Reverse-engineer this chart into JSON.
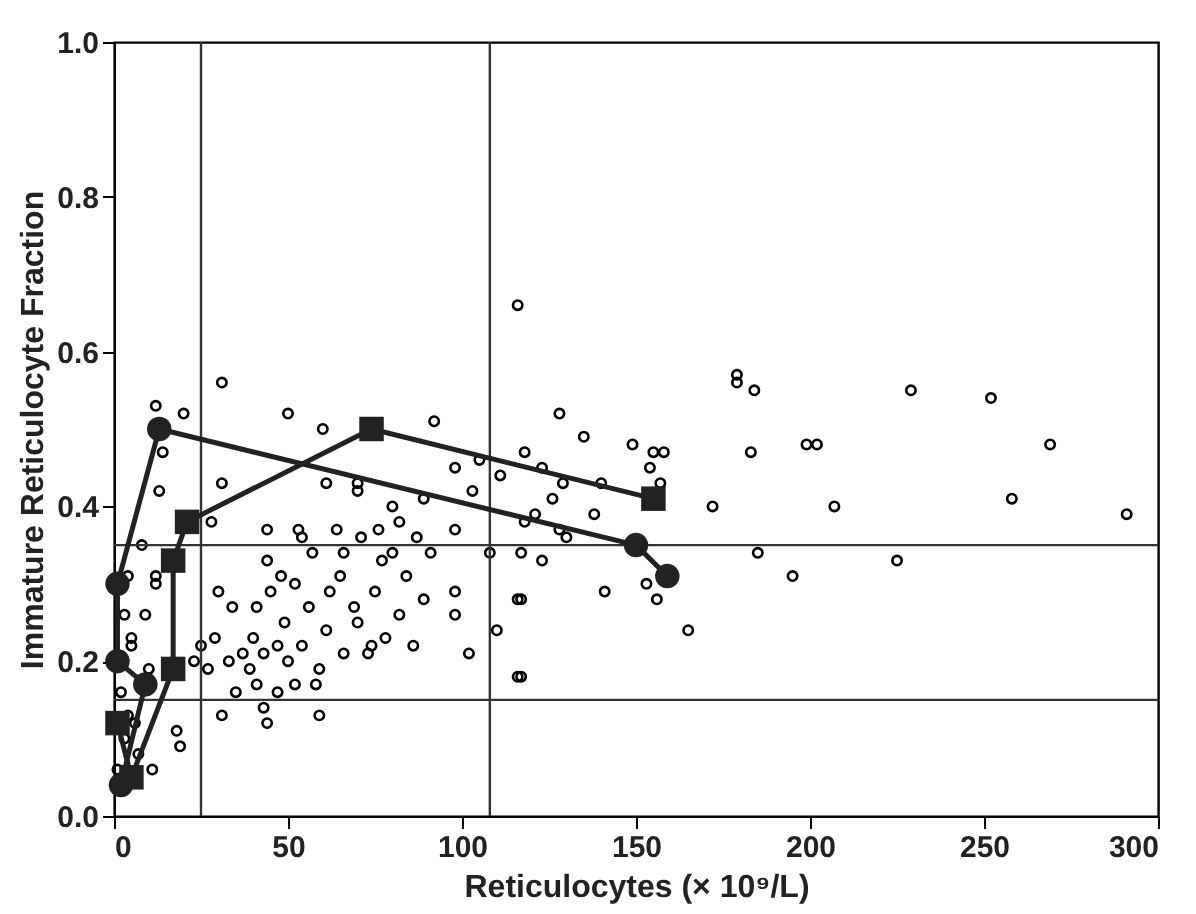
{
  "chart_data": {
    "type": "scatter",
    "xlabel": "Reticulocytes (× 10⁹/L)",
    "ylabel": "Immature Reticulocyte Fraction",
    "xlim": [
      0,
      300
    ],
    "xticks": [
      0,
      50,
      100,
      150,
      200,
      250,
      300
    ],
    "ylim": [
      0,
      1.0
    ],
    "yticks": [
      {
        "value": 0,
        "label": "0.0"
      },
      0.2,
      0.4,
      0.6,
      0.8,
      {
        "value": 1.0,
        "label": "1.0"
      }
    ],
    "grid": false,
    "legend": false,
    "ref_lines": [
      {
        "axis": "x",
        "value": 25,
        "color": "#333333"
      },
      {
        "axis": "x",
        "value": 108,
        "color": "#333333"
      },
      {
        "axis": "y",
        "value": 0.35,
        "color": "#333333"
      },
      {
        "axis": "y",
        "value": 0.15,
        "color": "#333333"
      }
    ],
    "series": [
      {
        "color": "#000000",
        "marker": "circle",
        "x": [
          179,
          179,
          184,
          229,
          252,
          128,
          135,
          149,
          118,
          155,
          158,
          154,
          183,
          199,
          202,
          269,
          123,
          140,
          129,
          126,
          157,
          258,
          172,
          207,
          291,
          121,
          138,
          118,
          128,
          130,
          117,
          123,
          185,
          195,
          225,
          141,
          153,
          156,
          117,
          165,
          117,
          31,
          12,
          20,
          50,
          60,
          92,
          14,
          13,
          31,
          61,
          70,
          70,
          89,
          80,
          98,
          105,
          111,
          103,
          28,
          8,
          12,
          4,
          44,
          53,
          98,
          108,
          98,
          98,
          102,
          110,
          116,
          116,
          59,
          44,
          31,
          18,
          19,
          11,
          10,
          5,
          9,
          3,
          5,
          2,
          4,
          6,
          3,
          7,
          1,
          12,
          27,
          30,
          34,
          33,
          37,
          40,
          41,
          45,
          44,
          48,
          49,
          50,
          54,
          56,
          57,
          59,
          61,
          62,
          65,
          66,
          69,
          70,
          71,
          73,
          75,
          77,
          78,
          82,
          84,
          86,
          87,
          89,
          91,
          82,
          41,
          39,
          35,
          47,
          43,
          52,
          58,
          23,
          25,
          29,
          54,
          64,
          76,
          80,
          66,
          52,
          74,
          47,
          43,
          116
        ],
        "values": [
          0.57,
          0.56,
          0.55,
          0.55,
          0.54,
          0.52,
          0.49,
          0.48,
          0.47,
          0.47,
          0.47,
          0.45,
          0.47,
          0.48,
          0.48,
          0.48,
          0.45,
          0.43,
          0.43,
          0.41,
          0.43,
          0.41,
          0.4,
          0.4,
          0.39,
          0.39,
          0.39,
          0.38,
          0.37,
          0.36,
          0.34,
          0.33,
          0.34,
          0.31,
          0.33,
          0.29,
          0.3,
          0.28,
          0.28,
          0.24,
          0.18,
          0.56,
          0.53,
          0.52,
          0.52,
          0.5,
          0.51,
          0.47,
          0.42,
          0.43,
          0.43,
          0.43,
          0.42,
          0.41,
          0.4,
          0.45,
          0.46,
          0.44,
          0.42,
          0.38,
          0.35,
          0.3,
          0.31,
          0.37,
          0.37,
          0.37,
          0.34,
          0.29,
          0.26,
          0.21,
          0.24,
          0.28,
          0.18,
          0.13,
          0.12,
          0.13,
          0.11,
          0.09,
          0.06,
          0.19,
          0.22,
          0.26,
          0.26,
          0.23,
          0.16,
          0.13,
          0.12,
          0.1,
          0.08,
          0.06,
          0.31,
          0.19,
          0.29,
          0.27,
          0.2,
          0.21,
          0.23,
          0.17,
          0.29,
          0.33,
          0.31,
          0.25,
          0.2,
          0.22,
          0.27,
          0.34,
          0.19,
          0.24,
          0.29,
          0.31,
          0.21,
          0.27,
          0.25,
          0.36,
          0.21,
          0.29,
          0.33,
          0.23,
          0.26,
          0.31,
          0.22,
          0.36,
          0.28,
          0.34,
          0.38,
          0.27,
          0.19,
          0.16,
          0.16,
          0.14,
          0.17,
          0.17,
          0.2,
          0.22,
          0.23,
          0.36,
          0.37,
          0.37,
          0.34,
          0.34,
          0.3,
          0.22,
          0.22,
          0.21,
          0.66
        ]
      },
      {
        "type": "line",
        "color": "#222222",
        "marker": "circle",
        "line_style": "solid",
        "x": [
          2,
          9,
          1,
          1,
          13,
          150,
          159
        ],
        "values": [
          0.04,
          0.17,
          0.2,
          0.3,
          0.5,
          0.35,
          0.31
        ]
      },
      {
        "type": "line",
        "color": "#222222",
        "marker": "square",
        "line_style": "solid",
        "x": [
          1,
          5,
          17,
          17,
          21,
          74,
          155
        ],
        "values": [
          0.12,
          0.05,
          0.19,
          0.33,
          0.38,
          0.5,
          0.41
        ]
      }
    ]
  }
}
